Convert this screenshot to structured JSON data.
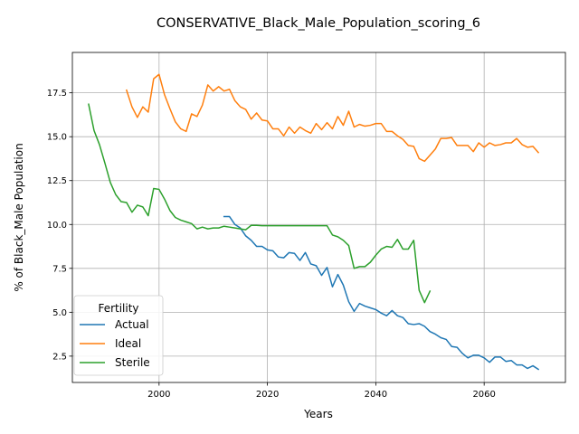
{
  "chart_data": {
    "type": "line",
    "title": "CONSERVATIVE_Black_Male_Population_scoring_6",
    "xlabel": "Years",
    "ylabel": "% of Black_Male Population",
    "xlim": [
      1984,
      2075
    ],
    "ylim": [
      1.0,
      19.8
    ],
    "x_ticks": [
      2000,
      2020,
      2040,
      2060
    ],
    "y_ticks": [
      2.5,
      5.0,
      7.5,
      10.0,
      12.5,
      15.0,
      17.5
    ],
    "grid": true,
    "legend": {
      "title": "Fertility",
      "placement": "lower-left"
    },
    "series": [
      {
        "name": "Actual",
        "color": "#1f77b4",
        "points": [
          [
            2012,
            10.45
          ],
          [
            2013,
            10.45
          ],
          [
            2014,
            10.0
          ],
          [
            2015,
            9.8
          ],
          [
            2016,
            9.35
          ],
          [
            2017,
            9.1
          ],
          [
            2018,
            8.75
          ],
          [
            2019,
            8.75
          ],
          [
            2020,
            8.55
          ],
          [
            2021,
            8.5
          ],
          [
            2022,
            8.15
          ],
          [
            2023,
            8.1
          ],
          [
            2024,
            8.4
          ],
          [
            2025,
            8.35
          ],
          [
            2026,
            7.95
          ],
          [
            2027,
            8.4
          ],
          [
            2028,
            7.75
          ],
          [
            2029,
            7.65
          ],
          [
            2030,
            7.1
          ],
          [
            2031,
            7.55
          ],
          [
            2032,
            6.45
          ],
          [
            2033,
            7.15
          ],
          [
            2034,
            6.55
          ],
          [
            2035,
            5.6
          ],
          [
            2036,
            5.05
          ],
          [
            2037,
            5.5
          ],
          [
            2038,
            5.35
          ],
          [
            2039,
            5.25
          ],
          [
            2040,
            5.15
          ],
          [
            2041,
            4.95
          ],
          [
            2042,
            4.8
          ],
          [
            2043,
            5.1
          ],
          [
            2044,
            4.8
          ],
          [
            2045,
            4.7
          ],
          [
            2046,
            4.35
          ],
          [
            2047,
            4.3
          ],
          [
            2048,
            4.35
          ],
          [
            2049,
            4.2
          ],
          [
            2050,
            3.9
          ],
          [
            2051,
            3.75
          ],
          [
            2052,
            3.55
          ],
          [
            2053,
            3.45
          ],
          [
            2054,
            3.05
          ],
          [
            2055,
            3.0
          ],
          [
            2056,
            2.65
          ],
          [
            2057,
            2.4
          ],
          [
            2058,
            2.55
          ],
          [
            2059,
            2.55
          ],
          [
            2060,
            2.4
          ],
          [
            2061,
            2.15
          ],
          [
            2062,
            2.45
          ],
          [
            2063,
            2.45
          ],
          [
            2064,
            2.2
          ],
          [
            2065,
            2.25
          ],
          [
            2066,
            2.0
          ],
          [
            2067,
            2.0
          ],
          [
            2068,
            1.8
          ],
          [
            2069,
            1.95
          ],
          [
            2070,
            1.75
          ]
        ]
      },
      {
        "name": "Ideal",
        "color": "#ff7f0e",
        "points": [
          [
            1994,
            17.65
          ],
          [
            1995,
            16.7
          ],
          [
            1996,
            16.1
          ],
          [
            1997,
            16.7
          ],
          [
            1998,
            16.4
          ],
          [
            1999,
            18.3
          ],
          [
            2000,
            18.55
          ],
          [
            2001,
            17.4
          ],
          [
            2002,
            16.6
          ],
          [
            2003,
            15.85
          ],
          [
            2004,
            15.45
          ],
          [
            2005,
            15.3
          ],
          [
            2006,
            16.3
          ],
          [
            2007,
            16.15
          ],
          [
            2008,
            16.8
          ],
          [
            2009,
            17.95
          ],
          [
            2010,
            17.6
          ],
          [
            2011,
            17.85
          ],
          [
            2012,
            17.6
          ],
          [
            2013,
            17.7
          ],
          [
            2014,
            17.05
          ],
          [
            2015,
            16.7
          ],
          [
            2016,
            16.55
          ],
          [
            2017,
            16.0
          ],
          [
            2018,
            16.35
          ],
          [
            2019,
            15.95
          ],
          [
            2020,
            15.9
          ],
          [
            2021,
            15.45
          ],
          [
            2022,
            15.45
          ],
          [
            2023,
            15.05
          ],
          [
            2024,
            15.55
          ],
          [
            2025,
            15.2
          ],
          [
            2026,
            15.55
          ],
          [
            2027,
            15.35
          ],
          [
            2028,
            15.2
          ],
          [
            2029,
            15.75
          ],
          [
            2030,
            15.4
          ],
          [
            2031,
            15.8
          ],
          [
            2032,
            15.45
          ],
          [
            2033,
            16.15
          ],
          [
            2034,
            15.65
          ],
          [
            2035,
            16.45
          ],
          [
            2036,
            15.55
          ],
          [
            2037,
            15.7
          ],
          [
            2038,
            15.6
          ],
          [
            2039,
            15.65
          ],
          [
            2040,
            15.75
          ],
          [
            2041,
            15.75
          ],
          [
            2042,
            15.3
          ],
          [
            2043,
            15.3
          ],
          [
            2044,
            15.05
          ],
          [
            2045,
            14.85
          ],
          [
            2046,
            14.5
          ],
          [
            2047,
            14.45
          ],
          [
            2048,
            13.75
          ],
          [
            2049,
            13.6
          ],
          [
            2050,
            13.95
          ],
          [
            2051,
            14.3
          ],
          [
            2052,
            14.9
          ],
          [
            2053,
            14.9
          ],
          [
            2054,
            14.95
          ],
          [
            2055,
            14.5
          ],
          [
            2056,
            14.5
          ],
          [
            2057,
            14.5
          ],
          [
            2058,
            14.15
          ],
          [
            2059,
            14.65
          ],
          [
            2060,
            14.4
          ],
          [
            2061,
            14.65
          ],
          [
            2062,
            14.5
          ],
          [
            2063,
            14.55
          ],
          [
            2064,
            14.65
          ],
          [
            2065,
            14.65
          ],
          [
            2066,
            14.9
          ],
          [
            2067,
            14.55
          ],
          [
            2068,
            14.4
          ],
          [
            2069,
            14.45
          ],
          [
            2070,
            14.1
          ]
        ]
      },
      {
        "name": "Sterile",
        "color": "#2ca02c",
        "points": [
          [
            1987,
            16.85
          ],
          [
            1988,
            15.35
          ],
          [
            1989,
            14.55
          ],
          [
            1990,
            13.5
          ],
          [
            1991,
            12.4
          ],
          [
            1992,
            11.7
          ],
          [
            1993,
            11.3
          ],
          [
            1994,
            11.25
          ],
          [
            1995,
            10.7
          ],
          [
            1996,
            11.1
          ],
          [
            1997,
            11.0
          ],
          [
            1998,
            10.5
          ],
          [
            1999,
            12.05
          ],
          [
            2000,
            12.0
          ],
          [
            2001,
            11.45
          ],
          [
            2002,
            10.8
          ],
          [
            2003,
            10.4
          ],
          [
            2004,
            10.25
          ],
          [
            2005,
            10.15
          ],
          [
            2006,
            10.05
          ],
          [
            2007,
            9.75
          ],
          [
            2008,
            9.85
          ],
          [
            2009,
            9.75
          ],
          [
            2010,
            9.8
          ],
          [
            2011,
            9.8
          ],
          [
            2012,
            9.9
          ],
          [
            2013,
            9.85
          ],
          [
            2014,
            9.8
          ],
          [
            2015,
            9.75
          ],
          [
            2016,
            9.7
          ],
          [
            2017,
            9.95
          ],
          [
            2018,
            9.95
          ],
          [
            2019,
            9.93
          ],
          [
            2020,
            9.93
          ],
          [
            2021,
            9.93
          ],
          [
            2022,
            9.93
          ],
          [
            2023,
            9.93
          ],
          [
            2024,
            9.93
          ],
          [
            2025,
            9.93
          ],
          [
            2026,
            9.93
          ],
          [
            2027,
            9.93
          ],
          [
            2028,
            9.93
          ],
          [
            2029,
            9.93
          ],
          [
            2030,
            9.93
          ],
          [
            2031,
            9.93
          ],
          [
            2032,
            9.4
          ],
          [
            2033,
            9.3
          ],
          [
            2034,
            9.1
          ],
          [
            2035,
            8.8
          ],
          [
            2036,
            7.5
          ],
          [
            2037,
            7.6
          ],
          [
            2038,
            7.6
          ],
          [
            2039,
            7.85
          ],
          [
            2040,
            8.25
          ],
          [
            2041,
            8.6
          ],
          [
            2042,
            8.75
          ],
          [
            2043,
            8.7
          ],
          [
            2044,
            9.15
          ],
          [
            2045,
            8.6
          ],
          [
            2046,
            8.6
          ],
          [
            2047,
            9.1
          ],
          [
            2048,
            6.25
          ],
          [
            2049,
            5.55
          ],
          [
            2050,
            6.2
          ]
        ]
      }
    ]
  }
}
